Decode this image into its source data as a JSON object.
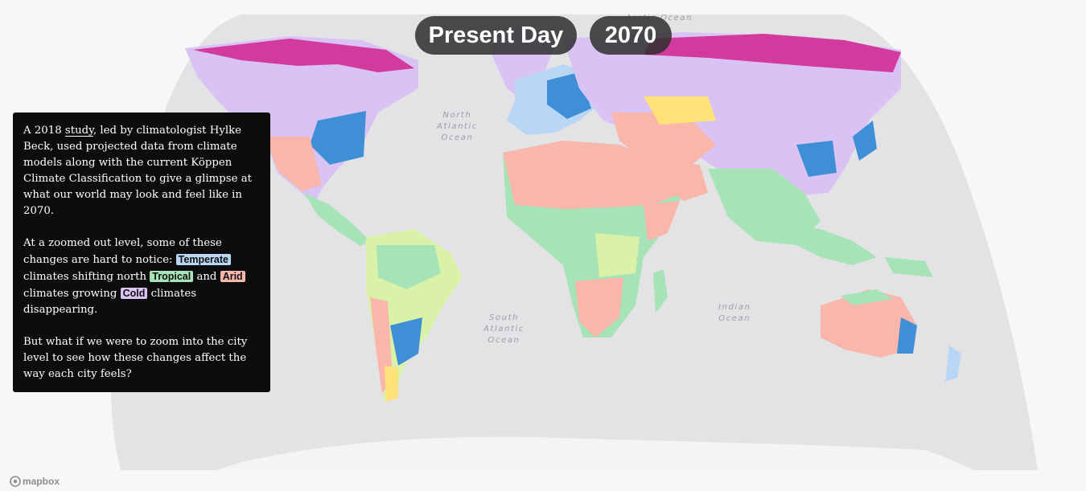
{
  "toggles": {
    "present": "Present Day",
    "future": "2070"
  },
  "ocean_labels": {
    "arctic": "Arctic Ocean",
    "north_atlantic": [
      "North",
      "Atlantic",
      "Ocean"
    ],
    "south_atlantic": [
      "South",
      "Atlantic",
      "Ocean"
    ],
    "indian": [
      "Indian",
      "Ocean"
    ]
  },
  "panel": {
    "p1_before": "A 2018 ",
    "p1_link": "study",
    "p1_after": ", led by climatologist Hylke Beck, used projected data from climate models along with the current Köppen Climate Classification to give a glimpse at what our world may look and feel like in 2070.",
    "p2_a": "At a zoomed out level, some of these changes are hard to notice: ",
    "tag_temperate": "Temperate",
    "p2_b": " climates shifting north ",
    "tag_tropical": "Tropical",
    "p2_c": " and ",
    "tag_arid": "Arid",
    "p2_d": " climates growing ",
    "tag_cold": "Cold",
    "p2_e": " climates disappearing.",
    "p3": "But what if we were to zoom into the city level to see how these changes affect the way each city feels?"
  },
  "attribution": "mapbox",
  "colors": {
    "ocean": "#e3e3e5",
    "background": "#f7f7f8",
    "tropical": "#a6e3b7",
    "arid": "#f9b6ab",
    "temperate": "#b9d6f5",
    "cold": "#d9c3f5",
    "polar": "#d23a9e",
    "dry_cold": "#ffe27a",
    "humid_blue": "#3f8fd6",
    "light_green": "#d9f2a7"
  }
}
